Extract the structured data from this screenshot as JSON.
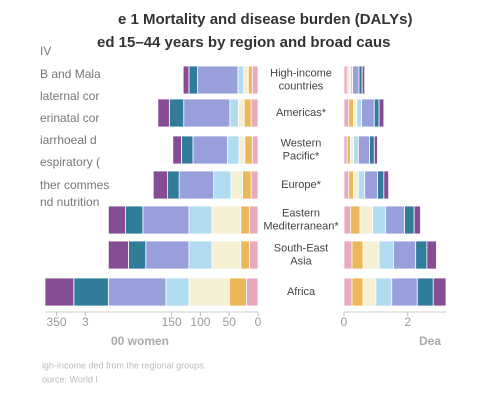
{
  "title": [
    "e 1 Mortality and disease burden (DALYs)",
    "ed 15–44 years by region and broad caus"
  ],
  "legend_extra": "nd nutrition",
  "footnote": [
    "igh-income ded from the regional groups.",
    "ource: World I"
  ],
  "chart_data": [
    {
      "type": "hbar-stacked",
      "direction": "left",
      "categories": [
        "High-income\ncountries",
        "Americas*",
        "Western\nPacific*",
        "Europe*",
        "Eastern\nMediterranean*",
        "South-East\nAsia",
        "Africa"
      ],
      "xlabel": "00 women",
      "xlim": [
        0,
        370
      ],
      "xticks": [
        0,
        50,
        100,
        150,
        {
          "value": 300,
          "label": "3"
        },
        350
      ],
      "series": [
        {
          "name": "IV",
          "color": "#7a3a8a",
          "values": [
            10,
            20,
            15,
            25,
            30,
            35,
            50
          ]
        },
        {
          "name": "B and Mala",
          "color": "#1a6e8e",
          "values": [
            15,
            25,
            20,
            20,
            30,
            30,
            60
          ]
        },
        {
          "name": "laternal cor",
          "color": "#8f95d8",
          "values": [
            70,
            80,
            60,
            60,
            80,
            75,
            100
          ]
        },
        {
          "name": "erinatal cor",
          "color": "#a8d8f0",
          "values": [
            10,
            15,
            20,
            30,
            40,
            40,
            40
          ]
        },
        {
          "name": "iarrhoeal d",
          "color": "#f5eed0",
          "values": [
            8,
            10,
            10,
            20,
            50,
            50,
            70
          ]
        },
        {
          "name": "espiratory (",
          "color": "#e9b04a",
          "values": [
            7,
            12,
            13,
            15,
            15,
            15,
            30
          ]
        },
        {
          "name": "ther commes",
          "color": "#e6a0b8",
          "values": [
            10,
            12,
            10,
            12,
            15,
            15,
            20
          ]
        }
      ]
    },
    {
      "type": "hbar-stacked",
      "direction": "right",
      "xlabel": "Dea",
      "xlim": [
        0,
        3.2
      ],
      "xticks": [
        0,
        2
      ],
      "series": [
        {
          "color": "#7a3a8a",
          "values": [
            0.08,
            0.15,
            0.1,
            0.15,
            0.2,
            0.3,
            0.4
          ]
        },
        {
          "color": "#1a6e8e",
          "values": [
            0.1,
            0.15,
            0.15,
            0.2,
            0.3,
            0.35,
            0.5
          ]
        },
        {
          "color": "#8f95d8",
          "values": [
            0.2,
            0.4,
            0.35,
            0.4,
            0.6,
            0.7,
            0.8
          ]
        },
        {
          "color": "#a8d8f0",
          "values": [
            0.07,
            0.15,
            0.15,
            0.2,
            0.4,
            0.45,
            0.5
          ]
        },
        {
          "color": "#f5eed0",
          "values": [
            0.05,
            0.1,
            0.1,
            0.15,
            0.4,
            0.5,
            0.4
          ]
        },
        {
          "color": "#e9b04a",
          "values": [
            0.05,
            0.15,
            0.1,
            0.15,
            0.3,
            0.35,
            0.35
          ]
        },
        {
          "color": "#e6a0b8",
          "values": [
            0.1,
            0.15,
            0.1,
            0.15,
            0.2,
            0.25,
            0.25
          ]
        }
      ]
    }
  ]
}
